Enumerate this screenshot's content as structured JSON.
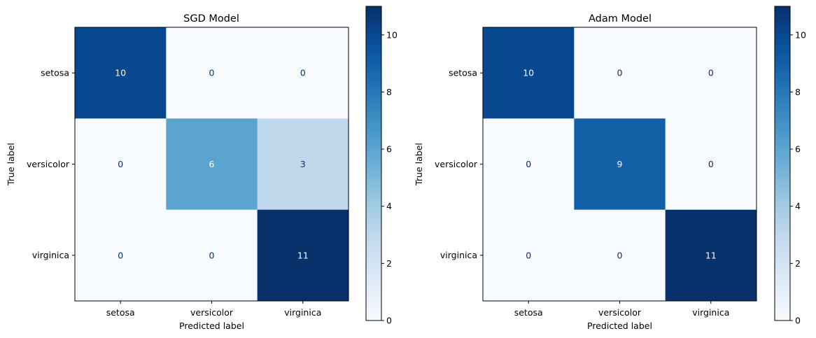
{
  "chart_data": [
    {
      "type": "heatmap",
      "title": "SGD Model",
      "xlabel": "Predicted label",
      "ylabel": "True label",
      "x_categories": [
        "setosa",
        "versicolor",
        "virginica"
      ],
      "y_categories": [
        "setosa",
        "versicolor",
        "virginica"
      ],
      "values": [
        [
          10,
          0,
          0
        ],
        [
          0,
          6,
          3
        ],
        [
          0,
          0,
          11
        ]
      ],
      "colormap": "Blues",
      "color_range": [
        0,
        11
      ],
      "colorbar_ticks": [
        "0",
        "2",
        "4",
        "6",
        "8",
        "10"
      ],
      "grid": false
    },
    {
      "type": "heatmap",
      "title": "Adam Model",
      "xlabel": "Predicted label",
      "ylabel": "True label",
      "x_categories": [
        "setosa",
        "versicolor",
        "virginica"
      ],
      "y_categories": [
        "setosa",
        "versicolor",
        "virginica"
      ],
      "values": [
        [
          10,
          0,
          0
        ],
        [
          0,
          9,
          0
        ],
        [
          0,
          0,
          11
        ]
      ],
      "colormap": "Blues",
      "color_range": [
        0,
        11
      ],
      "colorbar_ticks": [
        "0",
        "2",
        "4",
        "6",
        "8",
        "10"
      ],
      "grid": false
    }
  ]
}
